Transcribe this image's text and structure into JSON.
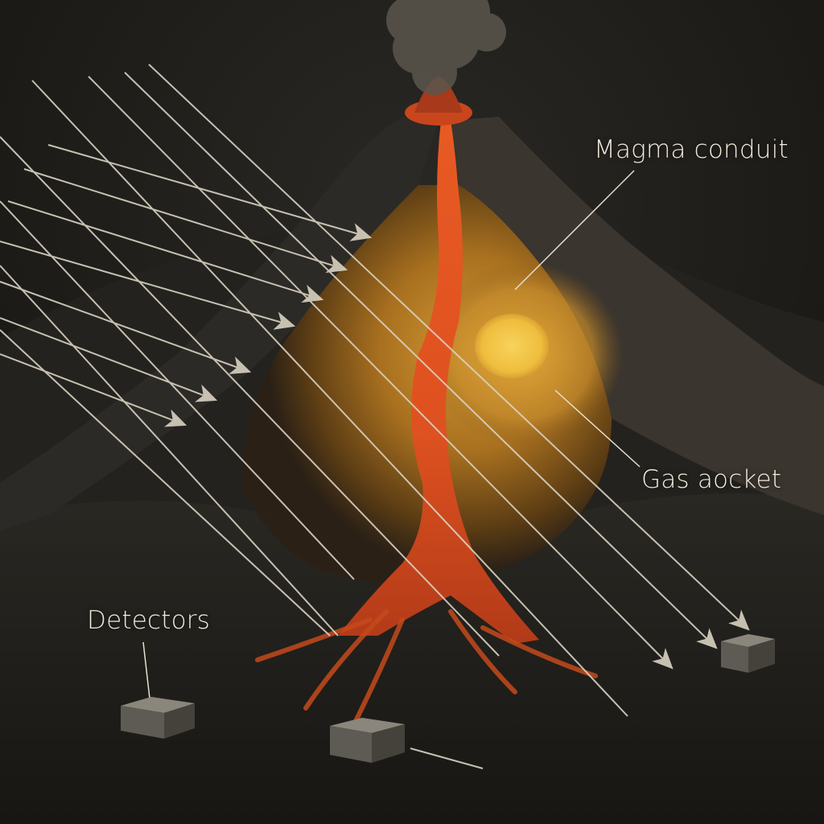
{
  "labels": {
    "magma_conduit": "Magma conduit",
    "gas_pocket": "Gas aocket",
    "detectors": "Detectors"
  },
  "colors": {
    "sky": "#1c1b18",
    "rock_dark": "#252320",
    "magma": "#e2541f",
    "chamber_glow": "#c98a2a",
    "gas_pocket": "#f3c64a",
    "ray": "#d9d2c2",
    "label_text": "#f1ebdc",
    "detector": "#6d6a62"
  },
  "icons": {
    "ray_arrowhead": "arrowhead-icon",
    "detector_box": "detector-box-icon"
  }
}
